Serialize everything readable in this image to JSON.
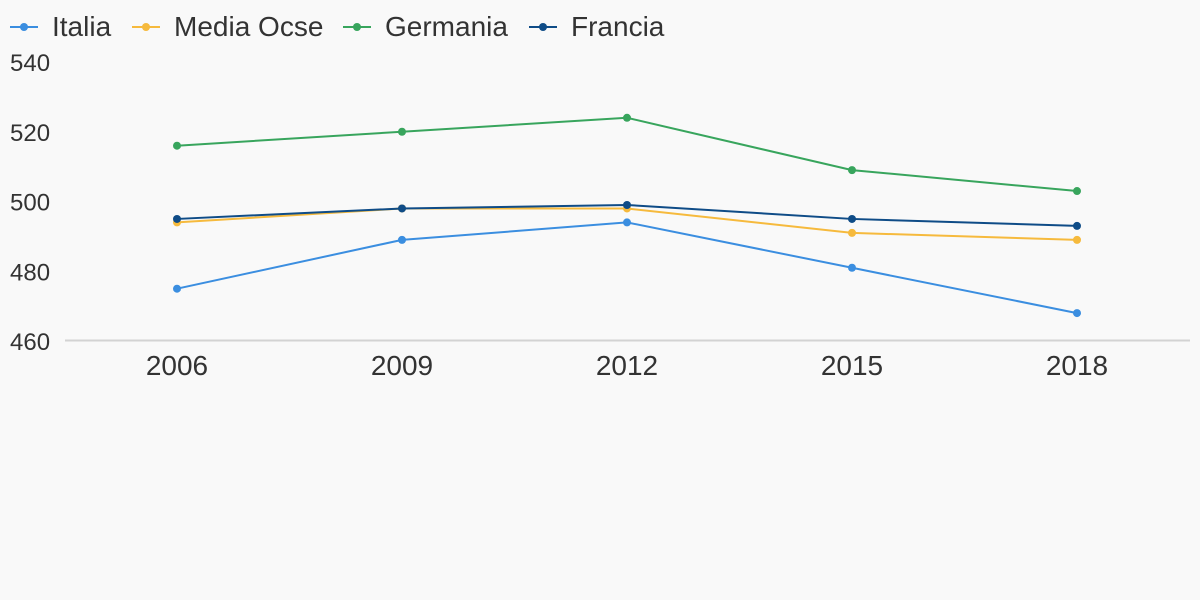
{
  "chart_data": {
    "type": "line",
    "categories": [
      "2006",
      "2009",
      "2012",
      "2015",
      "2018"
    ],
    "series": [
      {
        "name": "Italia",
        "color": "#3b8ee0",
        "values": [
          475,
          489,
          494,
          481,
          468
        ]
      },
      {
        "name": "Media Ocse",
        "color": "#f6ba3d",
        "values": [
          494,
          498,
          498,
          491,
          489
        ]
      },
      {
        "name": "Germania",
        "color": "#38a55d",
        "values": [
          516,
          520,
          524,
          509,
          503
        ]
      },
      {
        "name": "Francia",
        "color": "#0f4c87",
        "values": [
          495,
          498,
          499,
          495,
          493
        ]
      }
    ],
    "yticks": [
      "460",
      "480",
      "500",
      "520",
      "540"
    ],
    "ylim": [
      460,
      540
    ],
    "legend_position": "top-left",
    "grid": false,
    "title": "",
    "xlabel": "",
    "ylabel": ""
  }
}
